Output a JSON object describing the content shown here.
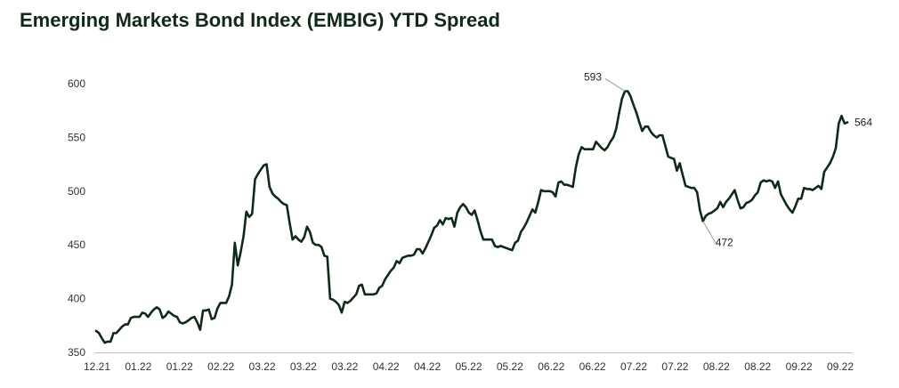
{
  "title": "Emerging Markets Bond Index (EMBIG) YTD Spread",
  "colors": {
    "title": "#0f2a16",
    "line": "#0f2a16",
    "axis": "#bfbfbf",
    "leader": "#9a9a9a"
  },
  "chart_data": {
    "type": "line",
    "title": "Emerging Markets Bond Index (EMBIG) YTD Spread",
    "xlabel": "",
    "ylabel": "",
    "ylim": [
      350,
      600
    ],
    "yticks": [
      "350",
      "400",
      "450",
      "500",
      "550",
      "600"
    ],
    "xticks": [
      "12.21",
      "01.22",
      "01.22",
      "02.22",
      "03.22",
      "03.22",
      "03.22",
      "04.22",
      "04.22",
      "05.22",
      "05.22",
      "06.22",
      "06.22",
      "07.22",
      "07.22",
      "08.22",
      "08.22",
      "09.22",
      "09.22"
    ],
    "grid": false,
    "legend": "none",
    "series": [
      {
        "values": [
          370,
          368,
          363,
          359,
          360,
          360,
          368,
          368,
          371,
          374,
          376,
          376,
          382,
          383,
          383,
          383,
          387,
          386,
          383,
          387,
          390,
          392,
          390,
          382,
          384,
          388,
          386,
          384,
          383,
          378,
          377,
          378,
          380,
          382,
          383,
          378,
          371,
          389,
          389,
          390,
          381,
          382,
          391,
          396,
          396,
          396,
          402,
          413,
          452,
          431,
          443,
          458,
          481,
          476,
          479,
          511,
          516,
          520,
          524,
          525,
          504,
          498,
          495,
          493,
          490,
          488,
          487,
          470,
          455,
          458,
          455,
          453,
          457,
          467,
          462,
          452,
          450,
          450,
          448,
          440,
          439,
          400,
          399,
          397,
          394,
          387,
          397,
          396,
          398,
          401,
          404,
          412,
          413,
          404,
          404,
          404,
          404,
          405,
          410,
          412,
          418,
          422,
          426,
          429,
          435,
          433,
          438,
          439,
          440,
          440,
          441,
          446,
          446,
          442,
          447,
          453,
          459,
          466,
          468,
          473,
          469,
          475,
          474,
          475,
          467,
          480,
          485,
          488,
          485,
          480,
          478,
          482,
          473,
          463,
          455,
          455,
          455,
          455,
          449,
          448,
          449,
          448,
          447,
          446,
          445,
          452,
          454,
          462,
          466,
          471,
          477,
          483,
          480,
          490,
          501,
          500,
          500,
          500,
          499,
          495,
          508,
          509,
          506,
          506,
          505,
          504,
          522,
          534,
          541,
          539,
          539,
          539,
          539,
          546,
          543,
          540,
          538,
          541,
          546,
          550,
          558,
          573,
          586,
          593,
          593,
          588,
          580,
          573,
          564,
          556,
          560,
          560,
          555,
          552,
          550,
          552,
          552,
          542,
          532,
          531,
          530,
          519,
          526,
          515,
          505,
          504,
          503,
          503,
          499,
          482,
          472,
          477,
          479,
          480,
          482,
          484,
          490,
          485,
          490,
          493,
          497,
          501,
          492,
          484,
          485,
          489,
          490,
          492,
          496,
          499,
          508,
          510,
          509,
          510,
          509,
          503,
          509,
          497,
          492,
          487,
          483,
          480,
          486,
          493,
          493,
          503,
          502,
          502,
          501,
          503,
          505,
          502,
          518,
          522,
          526,
          532,
          540,
          563,
          570,
          563,
          564
        ]
      }
    ],
    "annotations": [
      {
        "label": "593",
        "value": 593
      },
      {
        "label": "472",
        "value": 472
      },
      {
        "label": "564",
        "value": 564
      }
    ]
  }
}
